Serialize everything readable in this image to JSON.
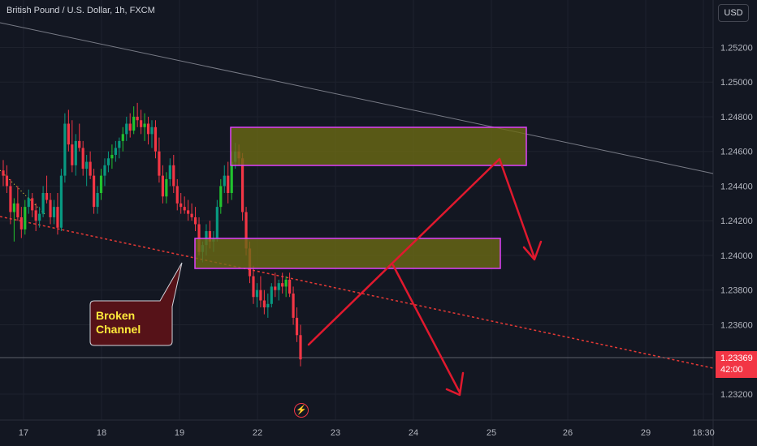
{
  "header": {
    "title": "British Pound / U.S. Dollar, 1h, FXCM",
    "currency": "USD"
  },
  "price_tag": {
    "price": "1.23369",
    "countdown": "42:00"
  },
  "annotation": {
    "line1": "Broken",
    "line2": "Channel"
  },
  "icons": {
    "bolt": "lightning-icon"
  },
  "colors": {
    "background": "#131722",
    "up": "#089981",
    "up_bright": "#22c32e",
    "down": "#f23645",
    "zone_fill": "#6b6a14",
    "zone_border": "#e040fb",
    "arrow": "#e0192e",
    "trendline": "#787b86",
    "channel": "#e53935"
  },
  "chart_data": {
    "type": "candlestick",
    "title": "British Pound / U.S. Dollar, 1h, FXCM",
    "x_tick_labels": [
      "17",
      "18",
      "19",
      "22",
      "23",
      "24",
      "25",
      "26",
      "29",
      "18:30"
    ],
    "y_tick_labels": [
      "1.25200",
      "1.25000",
      "1.24800",
      "1.24600",
      "1.24400",
      "1.24200",
      "1.24000",
      "1.23800",
      "1.23600",
      "1.23200"
    ],
    "ylim": [
      1.2305,
      1.2538
    ],
    "current_price": 1.23369,
    "series": [
      {
        "name": "GBPUSD",
        "ohlc": [
          [
            1.2449,
            1.2455,
            1.244,
            1.2446
          ],
          [
            1.2446,
            1.2452,
            1.2436,
            1.244
          ],
          [
            1.244,
            1.2444,
            1.2418,
            1.2425
          ],
          [
            1.2425,
            1.2433,
            1.2408,
            1.243
          ],
          [
            1.243,
            1.244,
            1.242,
            1.2422
          ],
          [
            1.2422,
            1.2428,
            1.241,
            1.2415
          ],
          [
            1.2415,
            1.2432,
            1.2412,
            1.2428
          ],
          [
            1.2428,
            1.2438,
            1.2424,
            1.2433
          ],
          [
            1.2433,
            1.2436,
            1.2422,
            1.2426
          ],
          [
            1.2426,
            1.243,
            1.2414,
            1.242
          ],
          [
            1.242,
            1.2428,
            1.2416,
            1.2424
          ],
          [
            1.2424,
            1.244,
            1.2422,
            1.2436
          ],
          [
            1.2436,
            1.2446,
            1.243,
            1.2432
          ],
          [
            1.2432,
            1.2436,
            1.2418,
            1.2422
          ],
          [
            1.2422,
            1.2432,
            1.2418,
            1.2428
          ],
          [
            1.2428,
            1.2436,
            1.2412,
            1.2416
          ],
          [
            1.2416,
            1.245,
            1.2414,
            1.2446
          ],
          [
            1.2446,
            1.2482,
            1.2442,
            1.2476
          ],
          [
            1.2476,
            1.2484,
            1.246,
            1.2464
          ],
          [
            1.2464,
            1.2478,
            1.2448,
            1.2452
          ],
          [
            1.2452,
            1.247,
            1.2446,
            1.2466
          ],
          [
            1.2466,
            1.2476,
            1.246,
            1.2462
          ],
          [
            1.2462,
            1.2466,
            1.2446,
            1.245
          ],
          [
            1.245,
            1.2458,
            1.244,
            1.2454
          ],
          [
            1.2454,
            1.246,
            1.2444,
            1.2446
          ],
          [
            1.2446,
            1.245,
            1.2424,
            1.2428
          ],
          [
            1.2428,
            1.244,
            1.2424,
            1.2436
          ],
          [
            1.2436,
            1.245,
            1.2432,
            1.2446
          ],
          [
            1.2446,
            1.2456,
            1.244,
            1.2452
          ],
          [
            1.2452,
            1.246,
            1.2448,
            1.2456
          ],
          [
            1.2456,
            1.2464,
            1.245,
            1.2458
          ],
          [
            1.2458,
            1.2466,
            1.2454,
            1.2462
          ],
          [
            1.2462,
            1.2468,
            1.2456,
            1.2466
          ],
          [
            1.2466,
            1.2474,
            1.246,
            1.247
          ],
          [
            1.247,
            1.248,
            1.2466,
            1.2476
          ],
          [
            1.2476,
            1.2482,
            1.2468,
            1.2472
          ],
          [
            1.2472,
            1.2486,
            1.247,
            1.248
          ],
          [
            1.248,
            1.2488,
            1.2474,
            1.2478
          ],
          [
            1.2478,
            1.2484,
            1.247,
            1.2474
          ],
          [
            1.2474,
            1.2482,
            1.2466,
            1.2476
          ],
          [
            1.2476,
            1.248,
            1.2464,
            1.247
          ],
          [
            1.247,
            1.2478,
            1.2462,
            1.2474
          ],
          [
            1.2474,
            1.2478,
            1.2456,
            1.246
          ],
          [
            1.246,
            1.2468,
            1.2442,
            1.2446
          ],
          [
            1.2446,
            1.2452,
            1.243,
            1.2434
          ],
          [
            1.2434,
            1.2448,
            1.243,
            1.2444
          ],
          [
            1.2444,
            1.2456,
            1.244,
            1.2452
          ],
          [
            1.2452,
            1.2458,
            1.2436,
            1.244
          ],
          [
            1.244,
            1.2444,
            1.2426,
            1.243
          ],
          [
            1.243,
            1.2436,
            1.2424,
            1.2428
          ],
          [
            1.2428,
            1.2434,
            1.2424,
            1.2426
          ],
          [
            1.2426,
            1.2432,
            1.242,
            1.2424
          ],
          [
            1.2424,
            1.243,
            1.242,
            1.2422
          ],
          [
            1.2422,
            1.2428,
            1.2414,
            1.2418
          ],
          [
            1.2418,
            1.2422,
            1.24,
            1.2402
          ],
          [
            1.2402,
            1.2408,
            1.2396,
            1.2406
          ],
          [
            1.2406,
            1.2418,
            1.24,
            1.2414
          ],
          [
            1.2414,
            1.242,
            1.2404,
            1.2408
          ],
          [
            1.2408,
            1.2414,
            1.2402,
            1.241
          ],
          [
            1.241,
            1.2432,
            1.2408,
            1.2428
          ],
          [
            1.2428,
            1.2444,
            1.2424,
            1.244
          ],
          [
            1.244,
            1.2452,
            1.2436,
            1.2446
          ],
          [
            1.2446,
            1.2454,
            1.243,
            1.2436
          ],
          [
            1.2436,
            1.246,
            1.2432,
            1.2454
          ],
          [
            1.2454,
            1.2465,
            1.245,
            1.246
          ],
          [
            1.246,
            1.2464,
            1.2452,
            1.2456
          ],
          [
            1.2456,
            1.2459,
            1.242,
            1.2425
          ],
          [
            1.2425,
            1.2428,
            1.24,
            1.2404
          ],
          [
            1.2404,
            1.2408,
            1.2384,
            1.2388
          ],
          [
            1.2388,
            1.2394,
            1.2372,
            1.2376
          ],
          [
            1.2376,
            1.2384,
            1.237,
            1.238
          ],
          [
            1.238,
            1.2388,
            1.237,
            1.2374
          ],
          [
            1.2374,
            1.238,
            1.2366,
            1.237
          ],
          [
            1.237,
            1.2378,
            1.2364,
            1.2372
          ],
          [
            1.2372,
            1.2384,
            1.237,
            1.2382
          ],
          [
            1.2382,
            1.239,
            1.2376,
            1.238
          ],
          [
            1.238,
            1.2386,
            1.2374,
            1.2384
          ],
          [
            1.2384,
            1.239,
            1.2378,
            1.2382
          ],
          [
            1.2382,
            1.2388,
            1.2376,
            1.2386
          ],
          [
            1.2386,
            1.239,
            1.2376,
            1.2378
          ],
          [
            1.2378,
            1.2382,
            1.236,
            1.2364
          ],
          [
            1.2364,
            1.237,
            1.235,
            1.2354
          ],
          [
            1.2354,
            1.236,
            1.2336,
            1.234
          ]
        ]
      }
    ],
    "zones": [
      {
        "top": 1.2467,
        "bottom": 1.2446
      },
      {
        "top": 1.2405,
        "bottom": 1.2388
      }
    ],
    "grid": true,
    "legend": "none"
  }
}
